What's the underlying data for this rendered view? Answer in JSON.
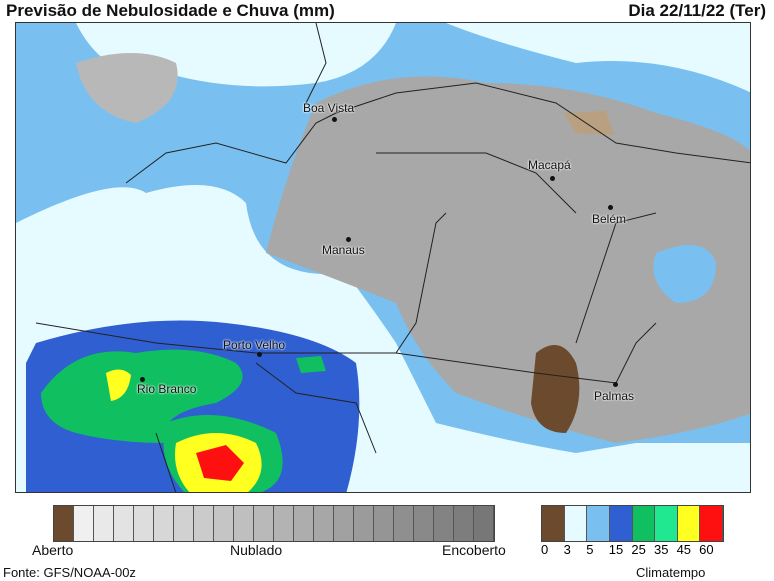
{
  "header": {
    "title": "Previsão de Nebulosidade e Chuva (mm)",
    "date": "Dia 22/11/22 (Ter)"
  },
  "map": {
    "cities": [
      {
        "name": "Boa Vista"
      },
      {
        "name": "Macapá"
      },
      {
        "name": "Belém"
      },
      {
        "name": "Manaus"
      },
      {
        "name": "Porto Velho"
      },
      {
        "name": "Rio Branco"
      },
      {
        "name": "Palmas"
      }
    ]
  },
  "cloud_legend": {
    "labels": [
      "Aberto",
      "Nublado",
      "Encoberto"
    ],
    "colors": [
      "#6b4a2e",
      "#f0f0f0",
      "#e9e9e9",
      "#e3e3e3",
      "#dddddd",
      "#d7d7d7",
      "#d1d1d1",
      "#cbcbcb",
      "#c5c5c5",
      "#bfbfbf",
      "#b9b9b9",
      "#b3b3b3",
      "#adadad",
      "#a7a7a7",
      "#a1a1a1",
      "#9b9b9b",
      "#959595",
      "#8f8f8f",
      "#898989",
      "#838383",
      "#7d7d7d",
      "#777777"
    ]
  },
  "rain_legend": {
    "values": [
      "0",
      "3",
      "5",
      "15",
      "25",
      "35",
      "45",
      "60"
    ],
    "colors": [
      "#6b4a2e",
      "#e6fbff",
      "#79c0f0",
      "#2f5fd0",
      "#10c060",
      "#20e890",
      "#ffff20",
      "#ff1010"
    ]
  },
  "footer": {
    "source": "Fonte: GFS/NOAA-00z",
    "brand": "Climatempo"
  }
}
